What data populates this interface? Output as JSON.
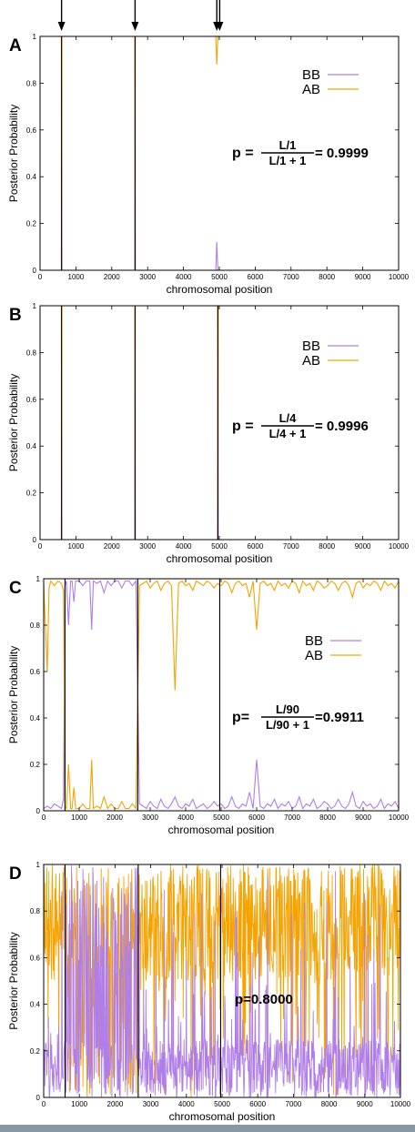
{
  "colors": {
    "BB": "#b07ee8",
    "AB": "#f5a300",
    "frame": "#000000"
  },
  "arrows": [
    600,
    2650,
    4930,
    5010
  ],
  "chart_data": [
    {
      "type": "line",
      "panel_label": "A",
      "xlabel": "chromosomal position",
      "ylabel": "Posterior Probability",
      "xlim": [
        0,
        10000
      ],
      "ylim": [
        0,
        1
      ],
      "xticks": [
        "0",
        "1000",
        "2000",
        "3000",
        "4000",
        "5000",
        "6000",
        "7000",
        "8000",
        "9000",
        "10000"
      ],
      "yticks": [
        "0",
        "0.2",
        "0.4",
        "0.6",
        "0.8",
        "1"
      ],
      "legend": {
        "placement": "top-right",
        "entries": [
          "BB",
          "AB"
        ]
      },
      "formula": {
        "lhs": "p =",
        "num": "L/1",
        "den": "L/1 + 1",
        "rhs": "= 0.9999"
      },
      "series": [
        {
          "name": "BB",
          "x": [
            0,
            595,
            600,
            610,
            2645,
            2650,
            2660,
            4900,
            4930,
            4960,
            10000
          ],
          "y": [
            0,
            0,
            1,
            0,
            0,
            1,
            0,
            0,
            0.12,
            0,
            0
          ]
        },
        {
          "name": "AB",
          "x": [
            0,
            595,
            600,
            610,
            2645,
            2650,
            2660,
            4900,
            4930,
            4960,
            10000
          ],
          "y": [
            1,
            1,
            0,
            1,
            1,
            0,
            1,
            1,
            0.88,
            1,
            1
          ]
        }
      ],
      "vlines": [
        600,
        2650
      ]
    },
    {
      "type": "line",
      "panel_label": "B",
      "xlabel": "chromosomal position",
      "ylabel": "Posterior Probability",
      "xlim": [
        0,
        10000
      ],
      "ylim": [
        0,
        1
      ],
      "xticks": [
        "0",
        "1000",
        "2000",
        "3000",
        "4000",
        "5000",
        "6000",
        "7000",
        "8000",
        "9000",
        "10000"
      ],
      "yticks": [
        "0",
        "0.2",
        "0.4",
        "0.6",
        "0.8",
        "1"
      ],
      "legend": {
        "placement": "top-right",
        "entries": [
          "BB",
          "AB"
        ]
      },
      "formula": {
        "lhs": "p =",
        "num": "L/4",
        "den": "L/4 + 1",
        "rhs": "= 0.9996"
      },
      "series": [
        {
          "name": "BB",
          "x": [
            0,
            595,
            600,
            610,
            2645,
            2650,
            2660,
            4950,
            4960,
            4970,
            10000
          ],
          "y": [
            0,
            0,
            1,
            0,
            0,
            1,
            0,
            0,
            1,
            0,
            0
          ]
        },
        {
          "name": "AB",
          "x": [
            0,
            595,
            600,
            610,
            2645,
            2650,
            2660,
            4950,
            4960,
            4970,
            10000
          ],
          "y": [
            1,
            1,
            0,
            1,
            1,
            0,
            1,
            1,
            0,
            1,
            1
          ]
        }
      ],
      "vlines": [
        600,
        2650,
        4960
      ]
    },
    {
      "type": "line",
      "panel_label": "C",
      "xlabel": "chromosomal position",
      "ylabel": "Posterior Probability",
      "xlim": [
        0,
        10000
      ],
      "ylim": [
        0,
        1
      ],
      "xticks": [
        "0",
        "1000",
        "2000",
        "3000",
        "4000",
        "5000",
        "6000",
        "7000",
        "8000",
        "9000",
        "10000"
      ],
      "yticks": [
        "0",
        "0.2",
        "0.4",
        "0.6",
        "0.8",
        "1"
      ],
      "legend": {
        "placement": "right",
        "entries": [
          "BB",
          "AB"
        ]
      },
      "formula": {
        "lhs": "p=",
        "num": "L/90",
        "den": "L/90 + 1",
        "rhs": "=0.9911"
      },
      "series": [
        {
          "name": "BB",
          "x": [
            0,
            100,
            200,
            300,
            400,
            500,
            560,
            600,
            640,
            700,
            760,
            800,
            850,
            900,
            1000,
            1100,
            1200,
            1300,
            1350,
            1400,
            1500,
            1600,
            1700,
            1800,
            1900,
            2000,
            2100,
            2200,
            2300,
            2400,
            2500,
            2600,
            2700,
            2800,
            2900,
            3000,
            3100,
            3200,
            3300,
            3400,
            3500,
            3600,
            3700,
            3800,
            3900,
            4000,
            4100,
            4200,
            4300,
            4400,
            4500,
            4600,
            4700,
            4800,
            4900,
            5000,
            5100,
            5200,
            5300,
            5400,
            5500,
            5600,
            5700,
            5800,
            5900,
            6000,
            6100,
            6200,
            6300,
            6400,
            6500,
            6600,
            6700,
            6800,
            6900,
            7000,
            7100,
            7200,
            7300,
            7400,
            7500,
            7600,
            7700,
            7800,
            7900,
            8000,
            8100,
            8200,
            8300,
            8400,
            8500,
            8600,
            8700,
            8800,
            8900,
            9000,
            9100,
            9200,
            9300,
            9400,
            9500,
            9600,
            9700,
            9800,
            9900,
            10000
          ],
          "y": [
            0.01,
            0.02,
            0.01,
            0.03,
            0.02,
            0.01,
            0.05,
            0.97,
            0.99,
            0.8,
            0.99,
            0.99,
            0.9,
            0.99,
            0.99,
            0.97,
            0.99,
            0.99,
            0.78,
            0.99,
            0.98,
            0.99,
            0.94,
            0.99,
            0.97,
            0.99,
            0.99,
            0.96,
            0.99,
            0.99,
            0.97,
            0.99,
            0.03,
            0.02,
            0.01,
            0.04,
            0.02,
            0.01,
            0.05,
            0.02,
            0.01,
            0.03,
            0.06,
            0.02,
            0.01,
            0.03,
            0.02,
            0.05,
            0.01,
            0.02,
            0.03,
            0.01,
            0.02,
            0.04,
            0.02,
            0.03,
            0.01,
            0.02,
            0.06,
            0.02,
            0.01,
            0.03,
            0.02,
            0.08,
            0.01,
            0.22,
            0.02,
            0.01,
            0.03,
            0.02,
            0.05,
            0.01,
            0.03,
            0.02,
            0.04,
            0.01,
            0.02,
            0.06,
            0.01,
            0.03,
            0.02,
            0.05,
            0.01,
            0.02,
            0.04,
            0.03,
            0.01,
            0.02,
            0.05,
            0.02,
            0.01,
            0.03,
            0.08,
            0.02,
            0.01,
            0.04,
            0.02,
            0.03,
            0.01,
            0.02,
            0.05,
            0.01,
            0.03,
            0.02,
            0.04,
            0.01
          ]
        },
        {
          "name": "AB",
          "x": [
            0,
            100,
            150,
            200,
            300,
            400,
            500,
            560,
            600,
            640,
            700,
            760,
            800,
            850,
            900,
            1000,
            1100,
            1200,
            1300,
            1350,
            1400,
            1500,
            1600,
            1700,
            1800,
            1900,
            2000,
            2100,
            2200,
            2300,
            2400,
            2500,
            2600,
            2700,
            2800,
            2900,
            3000,
            3100,
            3200,
            3300,
            3400,
            3500,
            3600,
            3700,
            3800,
            3900,
            4000,
            4100,
            4200,
            4300,
            4400,
            4500,
            4600,
            4700,
            4800,
            4900,
            5000,
            5100,
            5200,
            5300,
            5400,
            5500,
            5600,
            5700,
            5800,
            5900,
            6000,
            6100,
            6200,
            6300,
            6400,
            6500,
            6600,
            6700,
            6800,
            6900,
            7000,
            7100,
            7200,
            7300,
            7400,
            7500,
            7600,
            7700,
            7800,
            7900,
            8000,
            8100,
            8200,
            8300,
            8400,
            8500,
            8600,
            8700,
            8800,
            8900,
            9000,
            9100,
            9200,
            9300,
            9400,
            9500,
            9600,
            9700,
            9800,
            9900,
            10000
          ],
          "y": [
            0.98,
            0.6,
            0.96,
            0.99,
            0.97,
            0.99,
            0.98,
            0.95,
            0.02,
            0.01,
            0.2,
            0.01,
            0.01,
            0.1,
            0.01,
            0.01,
            0.03,
            0.01,
            0.01,
            0.22,
            0.01,
            0.02,
            0.01,
            0.06,
            0.01,
            0.03,
            0.01,
            0.01,
            0.04,
            0.01,
            0.01,
            0.03,
            0.01,
            0.97,
            0.98,
            0.99,
            0.96,
            0.98,
            0.99,
            0.95,
            0.98,
            0.99,
            0.97,
            0.52,
            0.98,
            0.99,
            0.97,
            0.98,
            0.95,
            0.99,
            0.98,
            0.97,
            0.99,
            0.98,
            0.96,
            0.98,
            0.97,
            0.99,
            0.98,
            0.94,
            0.98,
            0.99,
            0.97,
            0.98,
            0.92,
            0.99,
            0.78,
            0.98,
            0.99,
            0.97,
            0.98,
            0.95,
            0.99,
            0.97,
            0.98,
            0.96,
            0.99,
            0.98,
            0.94,
            0.99,
            0.97,
            0.98,
            0.95,
            0.99,
            0.98,
            0.96,
            0.97,
            0.99,
            0.98,
            0.95,
            0.98,
            0.99,
            0.97,
            0.92,
            0.98,
            0.99,
            0.96,
            0.98,
            0.97,
            0.99,
            0.98,
            0.95,
            0.99,
            0.97,
            0.98,
            0.96,
            0.99
          ]
        }
      ],
      "vlines": [
        600,
        2650,
        4960
      ]
    },
    {
      "type": "line",
      "panel_label": "D",
      "xlabel": "chromosomal position",
      "ylabel": "Posterior Probability",
      "xlim": [
        0,
        10000
      ],
      "ylim": [
        0,
        1
      ],
      "xticks": [
        "0",
        "1000",
        "2000",
        "3000",
        "4000",
        "5000",
        "6000",
        "7000",
        "8000",
        "9000",
        "10000"
      ],
      "yticks": [
        "0",
        "0.2",
        "0.4",
        "0.6",
        "0.8",
        "1"
      ],
      "legend": null,
      "formula": {
        "text": "p=0.8000"
      },
      "noise": {
        "BB_low": [
          0,
          0.25
        ],
        "AB_high": [
          0.5,
          1.0
        ],
        "bb_dominant_range": [
          600,
          2650
        ]
      },
      "vlines": [
        600,
        2650,
        4960
      ]
    }
  ]
}
